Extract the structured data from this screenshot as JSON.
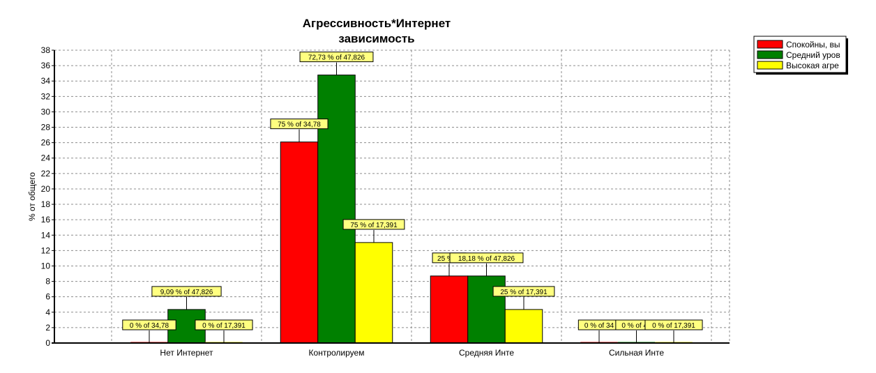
{
  "chart_data": {
    "type": "bar",
    "title_lines": [
      "Агрессивность*Интернет",
      "зависимость"
    ],
    "ylabel": "% от общего",
    "ylim": [
      0,
      38
    ],
    "yticks": [
      0,
      2,
      4,
      6,
      8,
      10,
      12,
      14,
      16,
      18,
      20,
      22,
      24,
      26,
      28,
      30,
      32,
      34,
      36,
      38
    ],
    "grid": true,
    "legend_position": "top-right",
    "categories": [
      "Нет Интернет",
      "Контролируем",
      "Средняя Инте",
      "Сильная Инте"
    ],
    "series": [
      {
        "name": "Спокойны, вы",
        "color": "#ff0000",
        "values": [
          0,
          26.09,
          8.7,
          0
        ],
        "labels": [
          "0 % of 34,78",
          "75 % of 34,78",
          "25 % of",
          "0 % of 34"
        ]
      },
      {
        "name": "Средний уров",
        "color": "#008000",
        "values": [
          4.35,
          34.78,
          8.7,
          0
        ],
        "labels": [
          "9,09 % of 47,826",
          "72,73 % of 47,826",
          "18,18 % of 47,826",
          "0 % of 47"
        ]
      },
      {
        "name": "Высокая агре",
        "color": "#ffff00",
        "values": [
          0,
          13.04,
          4.35,
          0
        ],
        "labels": [
          "0 % of 17,391",
          "75 % of 17,391",
          "25 % of 17,391",
          "0 % of 17,391"
        ]
      }
    ]
  }
}
